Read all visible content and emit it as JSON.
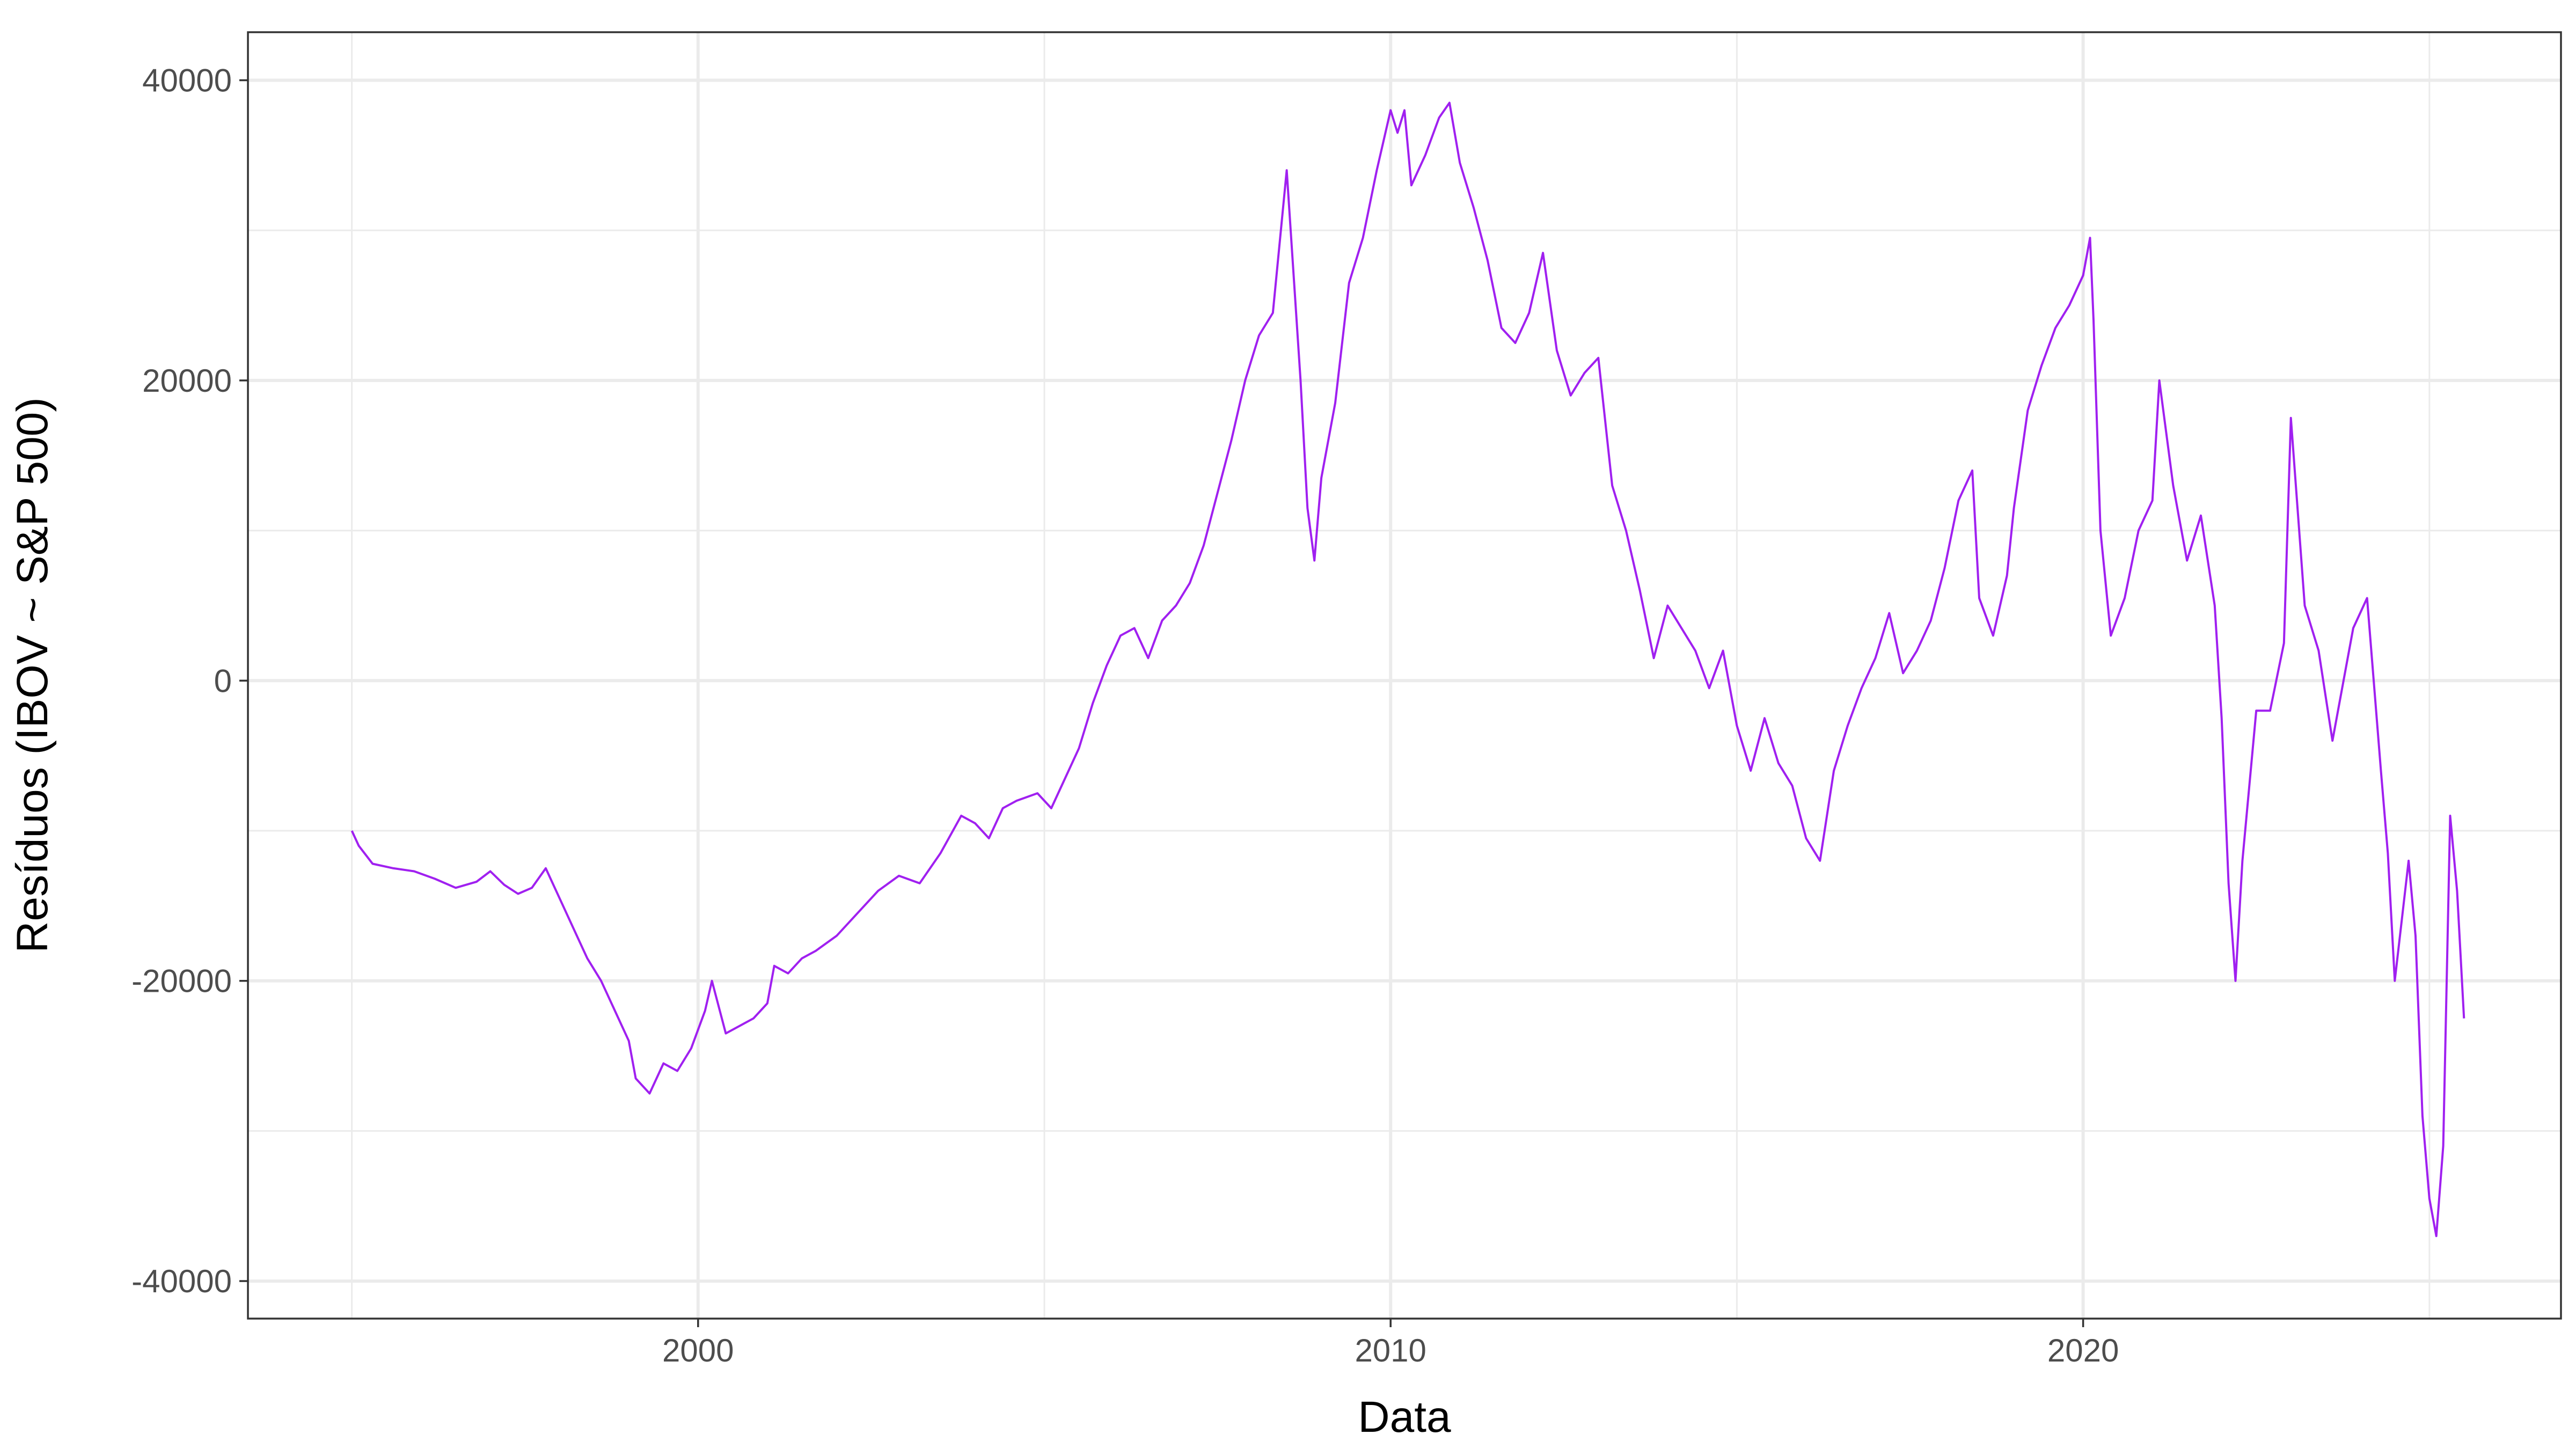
{
  "chart_data": {
    "type": "line",
    "title": "",
    "xlabel": "Data",
    "ylabel": "Resíduos (IBOV ~ S&P 500)",
    "xlim": [
      1993.5,
      2026.9
    ],
    "ylim": [
      -42500,
      43200
    ],
    "x_ticks": [
      2000,
      2010,
      2020
    ],
    "x_tick_labels": [
      "2000",
      "2010",
      "2020"
    ],
    "x_minor_ticks": [
      1995,
      2005,
      2015,
      2025
    ],
    "y_ticks": [
      -40000,
      -20000,
      0,
      20000,
      40000
    ],
    "y_tick_labels": [
      "-40000",
      "-20000",
      "0",
      "20000",
      "40000"
    ],
    "y_minor_ticks": [
      -30000,
      -10000,
      10000,
      30000
    ],
    "grid": true,
    "legend": "none",
    "line_color": "#A020F0",
    "series": [
      {
        "x": [
          1995.0,
          1995.1,
          1995.3,
          1995.6,
          1995.9,
          1996.2,
          1996.5,
          1996.8,
          1997.0,
          1997.2,
          1997.4,
          1997.6,
          1997.8,
          1998.0,
          1998.2,
          1998.4,
          1998.6,
          1998.8,
          1999.0,
          1999.1,
          1999.3,
          1999.5,
          1999.7,
          1999.9,
          2000.1,
          2000.2,
          2000.4,
          2000.6,
          2000.8,
          2001.0,
          2001.1,
          2001.3,
          2001.5,
          2001.7,
          2002.0,
          2002.3,
          2002.6,
          2002.9,
          2003.2,
          2003.5,
          2003.8,
          2004.0,
          2004.2,
          2004.4,
          2004.6,
          2004.9,
          2005.1,
          2005.3,
          2005.5,
          2005.7,
          2005.9,
          2006.1,
          2006.3,
          2006.5,
          2006.7,
          2006.9,
          2007.1,
          2007.3,
          2007.5,
          2007.7,
          2007.9,
          2008.1,
          2008.3,
          2008.5,
          2008.7,
          2008.8,
          2008.9,
          2009.0,
          2009.2,
          2009.4,
          2009.6,
          2009.8,
          2010.0,
          2010.1,
          2010.2,
          2010.3,
          2010.5,
          2010.7,
          2010.85,
          2011.0,
          2011.2,
          2011.4,
          2011.6,
          2011.8,
          2012.0,
          2012.2,
          2012.4,
          2012.6,
          2012.8,
          2013.0,
          2013.2,
          2013.4,
          2013.6,
          2013.8,
          2014.0,
          2014.2,
          2014.4,
          2014.6,
          2014.8,
          2015.0,
          2015.2,
          2015.4,
          2015.6,
          2015.8,
          2016.0,
          2016.2,
          2016.4,
          2016.6,
          2016.8,
          2017.0,
          2017.2,
          2017.4,
          2017.6,
          2017.8,
          2018.0,
          2018.2,
          2018.4,
          2018.5,
          2018.7,
          2018.9,
          2019.0,
          2019.2,
          2019.4,
          2019.6,
          2019.8,
          2020.0,
          2020.1,
          2020.15,
          2020.25,
          2020.4,
          2020.6,
          2020.8,
          2021.0,
          2021.1,
          2021.3,
          2021.5,
          2021.7,
          2021.9,
          2022.0,
          2022.1,
          2022.2,
          2022.3,
          2022.5,
          2022.7,
          2022.9,
          2023.0,
          2023.2,
          2023.4,
          2023.6,
          2023.8,
          2023.9,
          2024.1,
          2024.3,
          2024.4,
          2024.5,
          2024.7,
          2024.8,
          2024.9,
          2025.0,
          2025.1,
          2025.2,
          2025.3,
          2025.4,
          2025.5
        ],
        "y": [
          -10000,
          -11000,
          -12200,
          -12500,
          -12700,
          -13200,
          -13800,
          -13400,
          -12700,
          -13600,
          -14200,
          -13800,
          -12500,
          -14500,
          -16500,
          -18500,
          -20000,
          -22000,
          -24000,
          -26500,
          -27500,
          -25500,
          -26000,
          -24500,
          -22000,
          -20000,
          -23500,
          -23000,
          -22500,
          -21500,
          -19000,
          -19500,
          -18500,
          -18000,
          -17000,
          -15500,
          -14000,
          -13000,
          -13500,
          -11500,
          -9000,
          -9500,
          -10500,
          -8500,
          -8000,
          -7500,
          -8500,
          -6500,
          -4500,
          -1500,
          1000,
          3000,
          3500,
          1500,
          4000,
          5000,
          6500,
          9000,
          12500,
          16000,
          20000,
          23000,
          24500,
          34000,
          20000,
          11500,
          8000,
          13500,
          18500,
          26500,
          29500,
          34000,
          38000,
          36500,
          38000,
          33000,
          35000,
          37500,
          38500,
          34500,
          31500,
          28000,
          23500,
          22500,
          24500,
          28500,
          22000,
          19000,
          20500,
          21500,
          13000,
          10000,
          6000,
          1500,
          5000,
          3500,
          2000,
          -500,
          2000,
          -3000,
          -6000,
          -2500,
          -5500,
          -7000,
          -10500,
          -12000,
          -6000,
          -3000,
          -500,
          1500,
          4500,
          500,
          2000,
          4000,
          7500,
          12000,
          14000,
          5500,
          3000,
          7000,
          11500,
          18000,
          21000,
          23500,
          25000,
          27000,
          29500,
          24000,
          10000,
          3000,
          5500,
          10000,
          12000,
          20000,
          13000,
          8000,
          11000,
          5000,
          -2500,
          -13500,
          -20000,
          -12000,
          -2000,
          -2000,
          2500,
          17500,
          5000,
          2000,
          -4000,
          1000,
          3500,
          5500,
          -6000,
          -11500,
          -20000,
          -12000,
          -17000,
          -29000,
          -34500,
          -37000,
          -31000,
          -9000,
          -14000,
          -22500
        ]
      }
    ]
  }
}
